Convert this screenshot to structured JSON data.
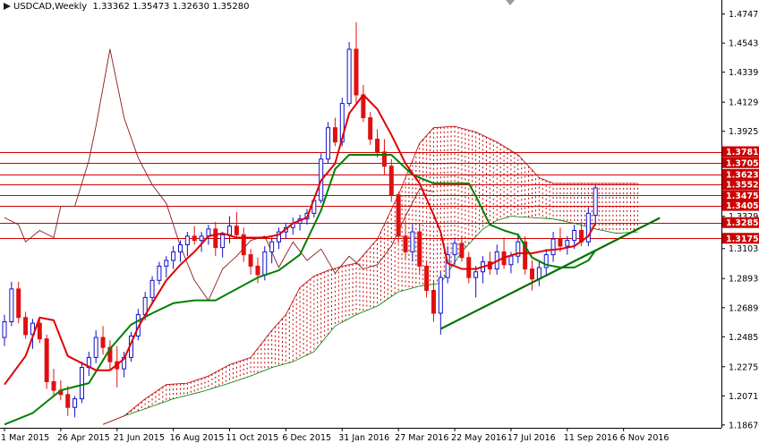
{
  "header": {
    "symbol_timeframe": "USDCAD,Weekly",
    "ohlc": "1.33362 1.35473 1.32630 1.35280",
    "icon": "chart-arrow-icon"
  },
  "colors": {
    "background": "#ffffff",
    "bull_candle": "#1010c8",
    "bear_candle": "#e01010",
    "tenkan": "#e00000",
    "kijun": "#008000",
    "chikou": "#8b1a1a",
    "cloud_bull": "#008000",
    "cloud_bear": "#c00000",
    "hline": "#d00000",
    "trendline": "#007000",
    "axis_text": "#000000",
    "price_label_bg": "#cc0000",
    "price_label_text": "#ffffff"
  },
  "chart_data": {
    "type": "candlestick",
    "title": "USDCAD,Weekly",
    "ylim": [
      1.1847,
      1.4845
    ],
    "y_ticks": [
      "1.47470",
      "1.45430",
      "1.43390",
      "1.41290",
      "1.39250",
      "1.37050",
      "1.35520",
      "1.33290",
      "1.31030",
      "1.28930",
      "1.26890",
      "1.24850",
      "1.22750",
      "1.20710",
      "1.18670"
    ],
    "x_labels": [
      "1 Mar 2015",
      "26 Apr 2015",
      "21 Jun 2015",
      "16 Aug 2015",
      "11 Oct 2015",
      "6 Dec 2015",
      "31 Jan 2016",
      "27 Mar 2016",
      "22 May 2016",
      "17 Jul 2016",
      "11 Sep 2016",
      "6 Nov 2016"
    ],
    "weeks_per_label": 8,
    "first_label_index": 0,
    "weeks_visible": 85,
    "candles": [
      [
        1.248,
        1.264,
        1.242,
        1.259
      ],
      [
        1.259,
        1.287,
        1.256,
        1.282
      ],
      [
        1.282,
        1.287,
        1.258,
        1.262
      ],
      [
        1.262,
        1.266,
        1.247,
        1.25
      ],
      [
        1.25,
        1.261,
        1.24,
        1.258
      ],
      [
        1.258,
        1.262,
        1.244,
        1.247
      ],
      [
        1.247,
        1.25,
        1.212,
        1.217
      ],
      [
        1.217,
        1.226,
        1.206,
        1.211
      ],
      [
        1.211,
        1.218,
        1.204,
        1.208
      ],
      [
        1.208,
        1.214,
        1.193,
        1.199
      ],
      [
        1.199,
        1.207,
        1.192,
        1.205
      ],
      [
        1.205,
        1.231,
        1.202,
        1.227
      ],
      [
        1.227,
        1.238,
        1.221,
        1.234
      ],
      [
        1.234,
        1.253,
        1.23,
        1.248
      ],
      [
        1.248,
        1.256,
        1.236,
        1.241
      ],
      [
        1.241,
        1.246,
        1.225,
        1.231
      ],
      [
        1.231,
        1.242,
        1.213,
        1.226
      ],
      [
        1.226,
        1.238,
        1.22,
        1.234
      ],
      [
        1.234,
        1.252,
        1.231,
        1.249
      ],
      [
        1.249,
        1.268,
        1.246,
        1.264
      ],
      [
        1.264,
        1.28,
        1.26,
        1.276
      ],
      [
        1.276,
        1.291,
        1.272,
        1.288
      ],
      [
        1.288,
        1.301,
        1.285,
        1.298
      ],
      [
        1.298,
        1.305,
        1.29,
        1.302
      ],
      [
        1.302,
        1.312,
        1.296,
        1.308
      ],
      [
        1.308,
        1.316,
        1.301,
        1.313
      ],
      [
        1.313,
        1.322,
        1.305,
        1.319
      ],
      [
        1.319,
        1.326,
        1.313,
        1.316
      ],
      [
        1.316,
        1.322,
        1.308,
        1.319
      ],
      [
        1.319,
        1.327,
        1.313,
        1.324
      ],
      [
        1.324,
        1.329,
        1.305,
        1.311
      ],
      [
        1.311,
        1.322,
        1.304,
        1.32
      ],
      [
        1.32,
        1.333,
        1.314,
        1.326
      ],
      [
        1.326,
        1.336,
        1.318,
        1.32
      ],
      [
        1.32,
        1.325,
        1.301,
        1.306
      ],
      [
        1.306,
        1.31,
        1.292,
        1.298
      ],
      [
        1.298,
        1.304,
        1.286,
        1.292
      ],
      [
        1.292,
        1.312,
        1.288,
        1.308
      ],
      [
        1.308,
        1.318,
        1.3,
        1.315
      ],
      [
        1.315,
        1.325,
        1.31,
        1.322
      ],
      [
        1.322,
        1.328,
        1.317,
        1.325
      ],
      [
        1.325,
        1.332,
        1.32,
        1.328
      ],
      [
        1.328,
        1.334,
        1.323,
        1.331
      ],
      [
        1.331,
        1.338,
        1.327,
        1.335
      ],
      [
        1.335,
        1.346,
        1.332,
        1.344
      ],
      [
        1.344,
        1.377,
        1.342,
        1.373
      ],
      [
        1.373,
        1.399,
        1.37,
        1.395
      ],
      [
        1.395,
        1.402,
        1.382,
        1.385
      ],
      [
        1.385,
        1.416,
        1.382,
        1.412
      ],
      [
        1.412,
        1.455,
        1.41,
        1.45
      ],
      [
        1.45,
        1.469,
        1.412,
        1.418
      ],
      [
        1.418,
        1.425,
        1.399,
        1.402
      ],
      [
        1.402,
        1.406,
        1.383,
        1.387
      ],
      [
        1.387,
        1.394,
        1.374,
        1.378
      ],
      [
        1.378,
        1.387,
        1.362,
        1.368
      ],
      [
        1.368,
        1.373,
        1.343,
        1.348
      ],
      [
        1.348,
        1.35,
        1.314,
        1.319
      ],
      [
        1.319,
        1.33,
        1.302,
        1.308
      ],
      [
        1.308,
        1.327,
        1.301,
        1.322
      ],
      [
        1.322,
        1.328,
        1.293,
        1.298
      ],
      [
        1.298,
        1.302,
        1.276,
        1.281
      ],
      [
        1.281,
        1.288,
        1.259,
        1.265
      ],
      [
        1.265,
        1.294,
        1.25,
        1.29
      ],
      [
        1.29,
        1.312,
        1.286,
        1.306
      ],
      [
        1.306,
        1.318,
        1.299,
        1.314
      ],
      [
        1.314,
        1.319,
        1.301,
        1.304
      ],
      [
        1.304,
        1.308,
        1.286,
        1.29
      ],
      [
        1.29,
        1.298,
        1.276,
        1.294
      ],
      [
        1.294,
        1.305,
        1.286,
        1.301
      ],
      [
        1.301,
        1.308,
        1.292,
        1.296
      ],
      [
        1.296,
        1.313,
        1.292,
        1.308
      ],
      [
        1.308,
        1.318,
        1.296,
        1.299
      ],
      [
        1.299,
        1.308,
        1.293,
        1.305
      ],
      [
        1.305,
        1.321,
        1.3,
        1.315
      ],
      [
        1.315,
        1.319,
        1.292,
        1.296
      ],
      [
        1.296,
        1.302,
        1.281,
        1.289
      ],
      [
        1.289,
        1.301,
        1.284,
        1.297
      ],
      [
        1.297,
        1.31,
        1.291,
        1.306
      ],
      [
        1.306,
        1.322,
        1.301,
        1.317
      ],
      [
        1.317,
        1.325,
        1.308,
        1.312
      ],
      [
        1.312,
        1.319,
        1.306,
        1.316
      ],
      [
        1.316,
        1.327,
        1.31,
        1.323
      ],
      [
        1.323,
        1.329,
        1.312,
        1.315
      ],
      [
        1.315,
        1.339,
        1.312,
        1.335
      ],
      [
        1.3336,
        1.3547,
        1.3263,
        1.3528
      ]
    ],
    "horizontal_levels": [
      1.37819,
      1.3705,
      1.3623,
      1.3552,
      1.3475,
      1.3405,
      1.3285,
      1.3175
    ],
    "trendline": [
      [
        62,
        1.254
      ],
      [
        84,
        1.318
      ]
    ],
    "tenkan_sen": [
      [
        0,
        1.215
      ],
      [
        3,
        1.235
      ],
      [
        5,
        1.262
      ],
      [
        7,
        1.26
      ],
      [
        9,
        1.235
      ],
      [
        11,
        1.23
      ],
      [
        13,
        1.225
      ],
      [
        15,
        1.225
      ],
      [
        17,
        1.233
      ],
      [
        19,
        1.255
      ],
      [
        21,
        1.272
      ],
      [
        23,
        1.288
      ],
      [
        25,
        1.299
      ],
      [
        27,
        1.308
      ],
      [
        29,
        1.319
      ],
      [
        31,
        1.321
      ],
      [
        33,
        1.318
      ],
      [
        35,
        1.318
      ],
      [
        37,
        1.318
      ],
      [
        39,
        1.32
      ],
      [
        41,
        1.328
      ],
      [
        43,
        1.332
      ],
      [
        45,
        1.358
      ],
      [
        47,
        1.37
      ],
      [
        49,
        1.405
      ],
      [
        51,
        1.418
      ],
      [
        53,
        1.408
      ],
      [
        55,
        1.39
      ],
      [
        57,
        1.37
      ],
      [
        59,
        1.356
      ],
      [
        61,
        1.334
      ],
      [
        62,
        1.322
      ],
      [
        63,
        1.3
      ],
      [
        65,
        1.296
      ],
      [
        67,
        1.296
      ],
      [
        69,
        1.299
      ],
      [
        71,
        1.304
      ],
      [
        73,
        1.307
      ],
      [
        75,
        1.307
      ],
      [
        77,
        1.309
      ],
      [
        79,
        1.31
      ],
      [
        81,
        1.312
      ],
      [
        83,
        1.319
      ],
      [
        84,
        1.328
      ]
    ],
    "kijun_sen": [
      [
        0,
        1.187
      ],
      [
        4,
        1.195
      ],
      [
        8,
        1.211
      ],
      [
        12,
        1.216
      ],
      [
        15,
        1.24
      ],
      [
        18,
        1.257
      ],
      [
        21,
        1.265
      ],
      [
        24,
        1.272
      ],
      [
        27,
        1.274
      ],
      [
        30,
        1.274
      ],
      [
        33,
        1.282
      ],
      [
        36,
        1.29
      ],
      [
        39,
        1.295
      ],
      [
        42,
        1.306
      ],
      [
        45,
        1.337
      ],
      [
        47,
        1.366
      ],
      [
        49,
        1.376
      ],
      [
        52,
        1.376
      ],
      [
        55,
        1.376
      ],
      [
        58,
        1.362
      ],
      [
        61,
        1.356
      ],
      [
        64,
        1.356
      ],
      [
        66,
        1.356
      ],
      [
        67,
        1.347
      ],
      [
        69,
        1.327
      ],
      [
        71,
        1.323
      ],
      [
        73,
        1.32
      ],
      [
        75,
        1.304
      ],
      [
        77,
        1.299
      ],
      [
        79,
        1.297
      ],
      [
        81,
        1.297
      ],
      [
        83,
        1.302
      ],
      [
        84,
        1.309
      ]
    ],
    "chikou_span": [
      [
        0,
        1.332
      ],
      [
        2,
        1.327
      ],
      [
        3,
        1.315
      ],
      [
        5,
        1.323
      ],
      [
        7,
        1.318
      ],
      [
        8,
        1.34
      ],
      [
        10,
        1.34
      ],
      [
        12,
        1.372
      ],
      [
        13,
        1.396
      ],
      [
        15,
        1.45
      ],
      [
        17,
        1.402
      ],
      [
        19,
        1.374
      ],
      [
        21,
        1.355
      ],
      [
        23,
        1.342
      ],
      [
        25,
        1.312
      ],
      [
        27,
        1.288
      ],
      [
        29,
        1.274
      ],
      [
        31,
        1.296
      ],
      [
        33,
        1.305
      ],
      [
        35,
        1.316
      ],
      [
        37,
        1.319
      ],
      [
        39,
        1.297
      ],
      [
        41,
        1.315
      ],
      [
        43,
        1.302
      ],
      [
        45,
        1.31
      ],
      [
        47,
        1.293
      ],
      [
        49,
        1.305
      ],
      [
        51,
        1.296
      ],
      [
        53,
        1.299
      ],
      [
        55,
        1.312
      ],
      [
        57,
        1.333
      ],
      [
        59,
        1.352
      ],
      [
        61,
        1.35
      ]
    ],
    "cloud": {
      "span_a": [
        [
          14,
          1.187
        ],
        [
          17,
          1.193
        ],
        [
          20,
          1.198
        ],
        [
          24,
          1.205
        ],
        [
          28,
          1.21
        ],
        [
          32,
          1.216
        ],
        [
          35,
          1.221
        ],
        [
          38,
          1.227
        ],
        [
          41,
          1.231
        ],
        [
          44,
          1.238
        ],
        [
          47,
          1.256
        ],
        [
          50,
          1.264
        ],
        [
          53,
          1.27
        ],
        [
          56,
          1.28
        ],
        [
          59,
          1.284
        ],
        [
          62,
          1.286
        ],
        [
          65,
          1.308
        ],
        [
          68,
          1.324
        ],
        [
          70,
          1.33
        ],
        [
          72,
          1.333
        ],
        [
          75,
          1.332
        ],
        [
          78,
          1.331
        ],
        [
          81,
          1.328
        ],
        [
          84,
          1.324
        ],
        [
          87,
          1.321
        ],
        [
          90,
          1.322
        ]
      ],
      "span_b": [
        [
          14,
          1.187
        ],
        [
          17,
          1.193
        ],
        [
          20,
          1.205
        ],
        [
          23,
          1.215
        ],
        [
          26,
          1.216
        ],
        [
          29,
          1.221
        ],
        [
          32,
          1.229
        ],
        [
          35,
          1.234
        ],
        [
          38,
          1.253
        ],
        [
          40,
          1.264
        ],
        [
          42,
          1.283
        ],
        [
          44,
          1.291
        ],
        [
          46,
          1.295
        ],
        [
          48,
          1.298
        ],
        [
          50,
          1.3
        ],
        [
          53,
          1.317
        ],
        [
          56,
          1.348
        ],
        [
          59,
          1.384
        ],
        [
          61,
          1.395
        ],
        [
          64,
          1.396
        ],
        [
          67,
          1.392
        ],
        [
          70,
          1.385
        ],
        [
          73,
          1.376
        ],
        [
          76,
          1.36
        ],
        [
          78,
          1.356
        ],
        [
          81,
          1.356
        ],
        [
          84,
          1.356
        ],
        [
          87,
          1.356
        ],
        [
          90,
          1.356
        ]
      ]
    }
  }
}
